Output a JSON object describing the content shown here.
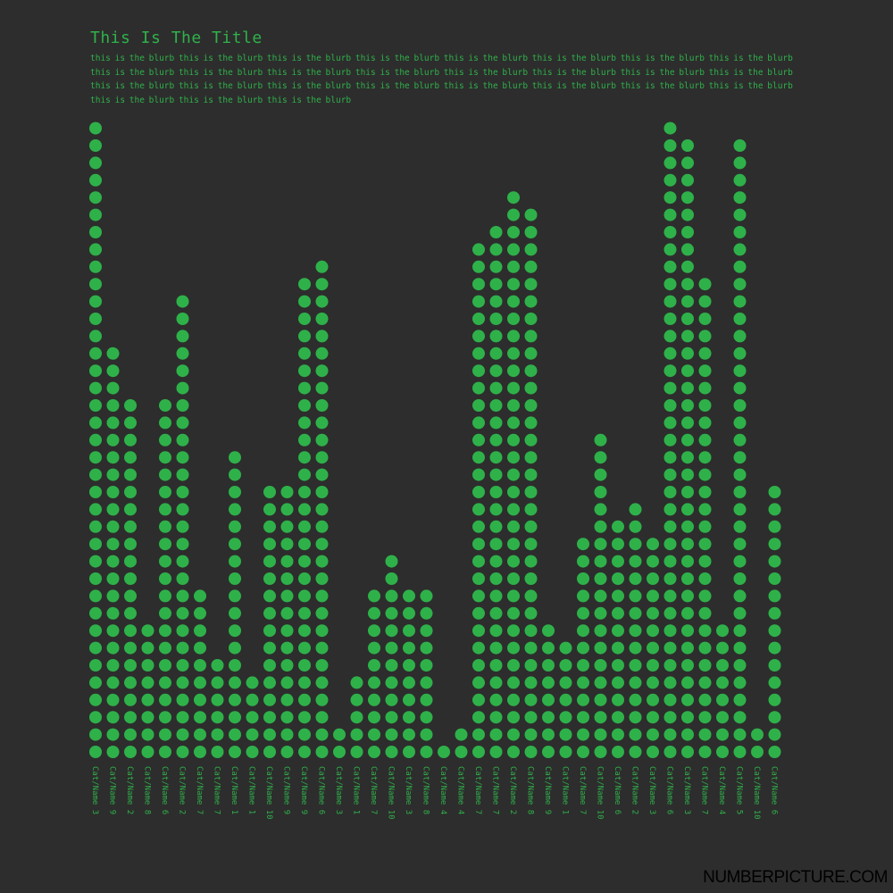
{
  "header": {
    "title": "This Is The Title",
    "blurb": "this is the blurb this is the blurb this is the blurb this is the blurb this is the blurb this is the blurb this is the blurb this is the blurb this is the blurb this is the blurb this is the blurb this is the blurb this is the blurb this is the blurb this is the blurb this is the blurb this is the blurb this is the blurb this is the blurb this is the blurb this is the blurb this is the blurb this is the blurb this is the blurb this is the blurb this is the blurb this is the blurb"
  },
  "brand": "NUMBERPICTURE.COM",
  "colors": {
    "background": "#2d2d2d",
    "dot": "#2fb14a",
    "text": "#2fb14a"
  },
  "chart_data": {
    "type": "bar",
    "style": "dot-column",
    "categories": [
      "Cat/Name 3",
      "Cat/Name 9",
      "Cat/Name 2",
      "Cat/Name 8",
      "Cat/Name 6",
      "Cat/Name 2",
      "Cat/Name 7",
      "Cat/Name 7",
      "Cat/Name 1",
      "Cat/Name 1",
      "Cat/Name 10",
      "Cat/Name 9",
      "Cat/Name 9",
      "Cat/Name 6",
      "Cat/Name 3",
      "Cat/Name 1",
      "Cat/Name 7",
      "Cat/Name 10",
      "Cat/Name 3",
      "Cat/Name 8",
      "Cat/Name 4",
      "Cat/Name 4",
      "Cat/Name 7",
      "Cat/Name 7",
      "Cat/Name 2",
      "Cat/Name 8",
      "Cat/Name 9",
      "Cat/Name 1",
      "Cat/Name 7",
      "Cat/Name 10",
      "Cat/Name 6",
      "Cat/Name 2",
      "Cat/Name 3",
      "Cat/Name 6",
      "Cat/Name 3",
      "Cat/Name 7",
      "Cat/Name 4",
      "Cat/Name 5",
      "Cat/Name 10",
      "Cat/Name 6"
    ],
    "values": [
      36,
      23,
      20,
      7,
      20,
      26,
      9,
      5,
      17,
      4,
      15,
      15,
      27,
      28,
      1,
      4,
      9,
      11,
      9,
      9,
      0,
      1,
      29,
      30,
      32,
      31,
      7,
      6,
      12,
      18,
      13,
      14,
      12,
      36,
      35,
      27,
      7,
      35,
      1,
      15
    ],
    "title": "This Is The Title",
    "xlabel": "",
    "ylabel": "",
    "grid": false,
    "legend": "none"
  }
}
